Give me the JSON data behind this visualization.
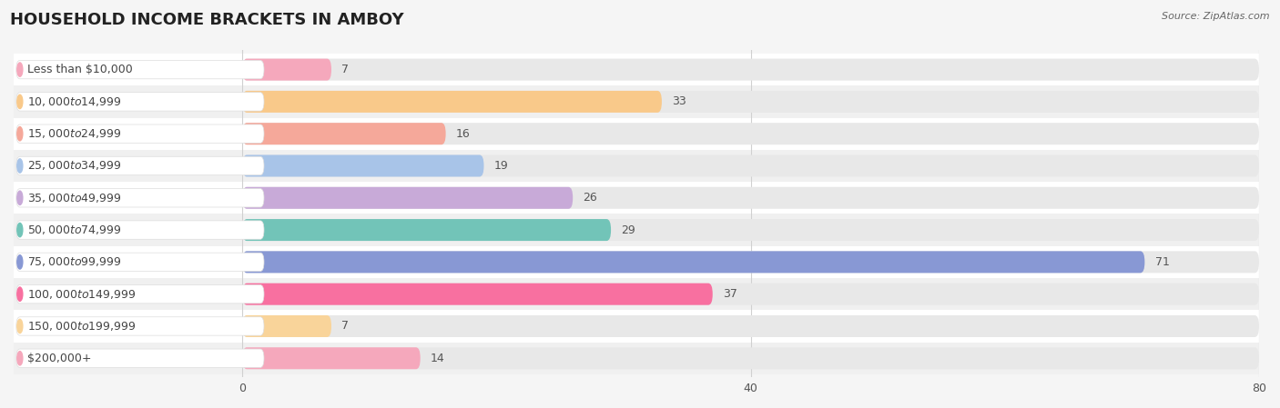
{
  "title": "HOUSEHOLD INCOME BRACKETS IN AMBOY",
  "source": "Source: ZipAtlas.com",
  "categories": [
    "Less than $10,000",
    "$10,000 to $14,999",
    "$15,000 to $24,999",
    "$25,000 to $34,999",
    "$35,000 to $49,999",
    "$50,000 to $74,999",
    "$75,000 to $99,999",
    "$100,000 to $149,999",
    "$150,000 to $199,999",
    "$200,000+"
  ],
  "values": [
    7,
    33,
    16,
    19,
    26,
    29,
    71,
    37,
    7,
    14
  ],
  "bar_colors": [
    "#f5a8bc",
    "#f9c98a",
    "#f5a89a",
    "#a8c4e8",
    "#c8aad8",
    "#72c4b8",
    "#8898d4",
    "#f870a0",
    "#f9d49a",
    "#f5a8bc"
  ],
  "label_bg_color": "#ffffff",
  "row_colors": [
    "#ffffff",
    "#f0f0f0"
  ],
  "bar_bg_color": "#e8e8e8",
  "xlim_data": 80,
  "xticks": [
    0,
    40,
    80
  ],
  "bar_height": 0.68,
  "title_fontsize": 13,
  "label_fontsize": 9,
  "value_fontsize": 9,
  "source_fontsize": 8,
  "fig_bg": "#f5f5f5",
  "grid_color": "#d0d0d0",
  "label_color": "#444444",
  "value_color": "#555555"
}
